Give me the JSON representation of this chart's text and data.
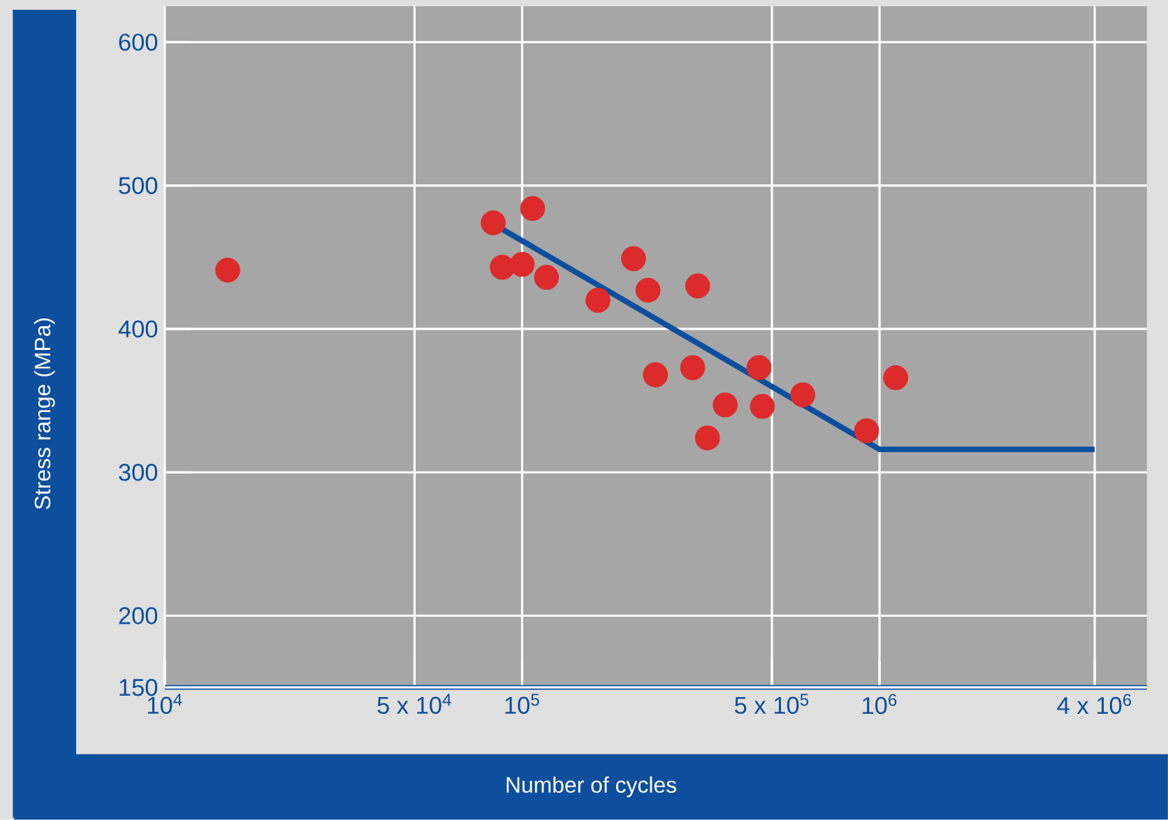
{
  "chart_data": {
    "type": "scatter",
    "xlabel": "Number of cycles",
    "ylabel": "Stress range (MPa)",
    "log": "x",
    "grid": true,
    "marker": "circle",
    "xlim": [
      10000,
      5600000
    ],
    "ylim": [
      150,
      625
    ],
    "xticks": [
      {
        "value": 10000,
        "label": "10$^{4}$"
      },
      {
        "value": 50000,
        "label": "5 x 10$^{4}$"
      },
      {
        "value": 100000,
        "label": "10$^{5}$"
      },
      {
        "value": 500000,
        "label": "5 x 10$^{5}$"
      },
      {
        "value": 1000000,
        "label": "10$^{6}$"
      },
      {
        "value": 4000000,
        "label": "4 x 10$^{6}$"
      }
    ],
    "yticks": [
      150,
      200,
      300,
      400,
      500,
      600
    ],
    "series": [
      {
        "color": "#dd2a2a",
        "x": [
          15000,
          83000,
          88000,
          100000,
          107000,
          117000,
          163000,
          205000,
          225000,
          236000,
          300000,
          310000,
          330000,
          370000,
          460000,
          470000,
          610000,
          920000,
          1110000
        ],
        "values": [
          441,
          474,
          443,
          445,
          484,
          436,
          420,
          449,
          427,
          368,
          373,
          430,
          324,
          347,
          373,
          346,
          354,
          329,
          366
        ]
      },
      {
        "type": "line",
        "color": "#0a4f9e",
        "marker": "none",
        "line_style": "solid",
        "x": [
          86000,
          1000000,
          4000000
        ],
        "values": [
          471,
          316,
          316
        ]
      }
    ]
  }
}
